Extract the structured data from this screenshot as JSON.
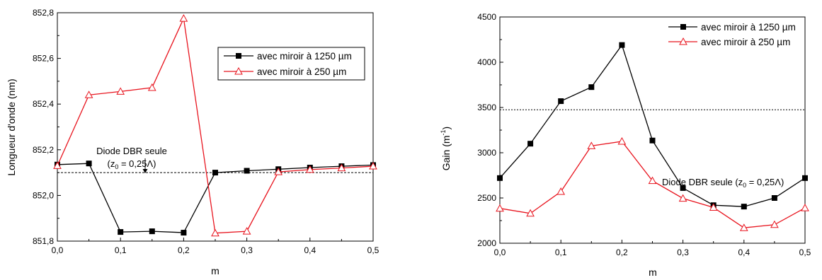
{
  "chart_data": [
    {
      "type": "line",
      "xlabel": "m",
      "ylabel": "Longueur d'onde (nm)",
      "xlim": [
        0,
        0.5
      ],
      "ylim": [
        851.8,
        852.8
      ],
      "x_ticks": [
        "0,0",
        "0,1",
        "0,2",
        "0,3",
        "0,4",
        "0,5"
      ],
      "y_ticks": [
        "851,8",
        "852,0",
        "852,2",
        "852,4",
        "852,6",
        "852,8"
      ],
      "x": [
        0,
        0.05,
        0.1,
        0.15,
        0.2,
        0.25,
        0.3,
        0.35,
        0.4,
        0.45,
        0.5
      ],
      "series": [
        {
          "name": "avec miroir à 1250 µm",
          "color": "#000000",
          "marker": "filled-square",
          "values": [
            852.135,
            852.14,
            851.84,
            851.843,
            851.837,
            852.1,
            852.108,
            852.115,
            852.122,
            852.128,
            852.133
          ]
        },
        {
          "name": "avec miroir à 250 µm",
          "color": "#e8141e",
          "marker": "open-triangle",
          "values": [
            852.13,
            852.44,
            852.455,
            852.472,
            852.775,
            851.835,
            851.843,
            852.103,
            852.113,
            852.12,
            852.128
          ]
        }
      ],
      "reference": {
        "value": 852.1,
        "label_line1": "Diode DBR seule",
        "label_line2": "(z0 = 0,25Λ)"
      },
      "legend": "top-right"
    },
    {
      "type": "line",
      "xlabel": "m",
      "ylabel": "Gain (m-1)",
      "xlim": [
        0,
        0.5
      ],
      "ylim": [
        2000,
        4500
      ],
      "x_ticks": [
        "0,0",
        "0,1",
        "0,2",
        "0,3",
        "0,4",
        "0,5"
      ],
      "y_ticks": [
        "2000",
        "2500",
        "3000",
        "3500",
        "4000",
        "4500"
      ],
      "x": [
        0,
        0.05,
        0.1,
        0.15,
        0.2,
        0.25,
        0.3,
        0.35,
        0.4,
        0.45,
        0.5
      ],
      "series": [
        {
          "name": "avec miroir à 1250 µm",
          "color": "#000000",
          "marker": "filled-square",
          "values": [
            2720,
            3100,
            3570,
            3725,
            4190,
            3135,
            2610,
            2420,
            2405,
            2500,
            2720
          ]
        },
        {
          "name": "avec miroir à 250 µm",
          "color": "#e8141e",
          "marker": "open-triangle",
          "values": [
            2385,
            2330,
            2570,
            3075,
            3125,
            2690,
            2495,
            2395,
            2170,
            2205,
            2390
          ]
        }
      ],
      "reference": {
        "value": 3475,
        "label": "Diode DBR seule (z0 = 0,25Λ)"
      },
      "legend": "top-right"
    }
  ]
}
